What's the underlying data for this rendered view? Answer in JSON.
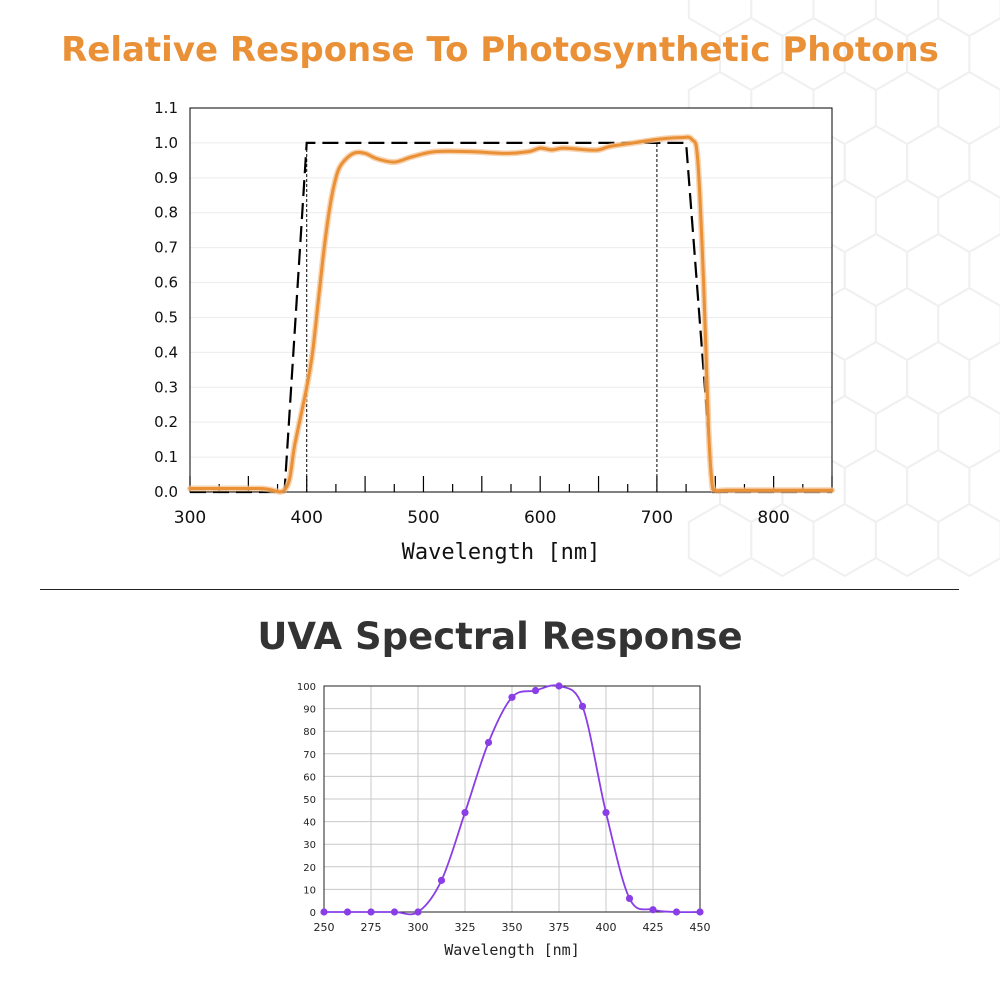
{
  "colors": {
    "title_orange": "#ea9037",
    "title_dark": "#333333",
    "measured_curve": "#ea9037",
    "uva_curve": "#8a3ee6"
  },
  "chart_data": [
    {
      "type": "line",
      "title": "Relative Response To Photosynthetic Photons",
      "xlabel": "Wavelength [nm]",
      "ylabel": "",
      "xlim": [
        300,
        850
      ],
      "ylim": [
        0.0,
        1.1
      ],
      "x_ticks": [
        "300",
        "400",
        "500",
        "600",
        "700",
        "800"
      ],
      "y_ticks": [
        "0.0",
        "0.1",
        "0.2",
        "0.3",
        "0.4",
        "0.5",
        "0.6",
        "0.7",
        "0.8",
        "0.9",
        "1.0",
        "1.1"
      ],
      "grid": "horizontal",
      "series": [
        {
          "style": "solid-orange",
          "x": [
            300,
            360,
            382,
            390,
            400,
            405,
            410,
            415,
            420,
            425,
            430,
            440,
            450,
            460,
            475,
            490,
            510,
            540,
            570,
            590,
            600,
            610,
            620,
            640,
            650,
            660,
            680,
            700,
            720,
            730,
            735,
            740,
            744,
            747,
            750,
            760,
            800,
            850
          ],
          "y": [
            0.01,
            0.01,
            0.01,
            0.14,
            0.3,
            0.4,
            0.55,
            0.7,
            0.82,
            0.9,
            0.94,
            0.97,
            0.97,
            0.955,
            0.945,
            0.96,
            0.975,
            0.975,
            0.97,
            0.975,
            0.985,
            0.98,
            0.985,
            0.98,
            0.98,
            0.99,
            1.0,
            1.01,
            1.015,
            1.01,
            0.95,
            0.6,
            0.2,
            0.03,
            0.005,
            0.005,
            0.005,
            0.005
          ]
        },
        {
          "style": "dashed-black",
          "x": [
            300,
            381,
            400,
            725,
            748,
            850
          ],
          "y": [
            0.0,
            0.0,
            1.0,
            1.0,
            0.0,
            0.0
          ]
        }
      ],
      "annotations": [
        {
          "type": "vertical-dotted-line",
          "x": 400,
          "y_top": 1.0
        },
        {
          "type": "vertical-dotted-line",
          "x": 700,
          "y_top": 1.0
        }
      ]
    },
    {
      "type": "line",
      "title": "UVA Spectral Response",
      "xlabel": "Wavelength [nm]",
      "ylabel": "",
      "xlim": [
        250,
        450
      ],
      "ylim": [
        0,
        100
      ],
      "x_ticks": [
        "250",
        "275",
        "300",
        "325",
        "350",
        "375",
        "400",
        "425",
        "450"
      ],
      "y_ticks": [
        "0",
        "10",
        "20",
        "30",
        "40",
        "50",
        "60",
        "70",
        "80",
        "90",
        "100"
      ],
      "grid": "both",
      "series": [
        {
          "style": "purple-markers",
          "x": [
            250,
            262.5,
            275,
            287.5,
            300,
            312.5,
            325,
            337.5,
            350,
            362.5,
            375,
            387.5,
            400,
            412.5,
            425,
            437.5,
            450
          ],
          "y": [
            0,
            0,
            0,
            0,
            0,
            14,
            44,
            75,
            95,
            98,
            100,
            91,
            44,
            6,
            1,
            0,
            0
          ]
        }
      ]
    }
  ]
}
